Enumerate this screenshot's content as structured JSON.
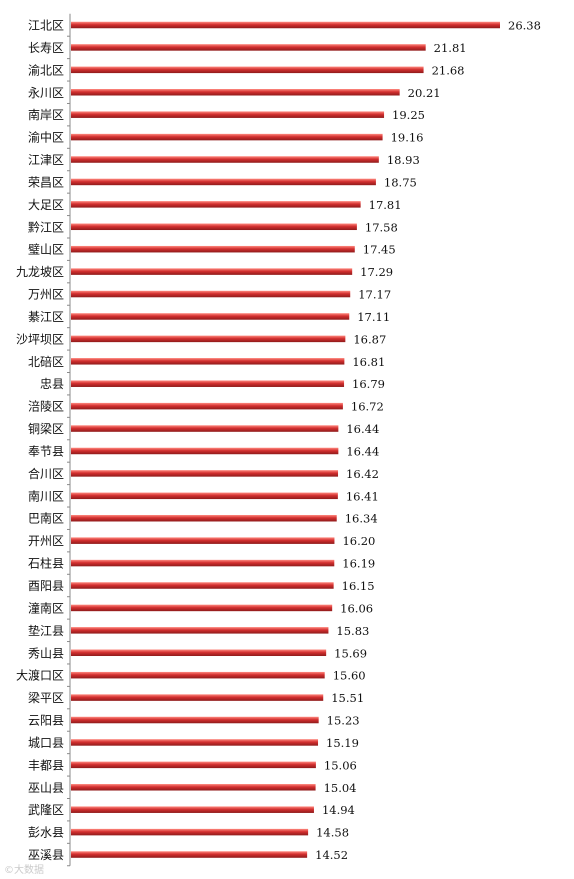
{
  "chart_data": {
    "type": "bar",
    "orientation": "horizontal",
    "categories": [
      "江北区",
      "长寿区",
      "渝北区",
      "永川区",
      "南岸区",
      "渝中区",
      "江津区",
      "荣昌区",
      "大足区",
      "黔江区",
      "璧山区",
      "九龙坡区",
      "万州区",
      "綦江区",
      "沙坪坝区",
      "北碚区",
      "忠县",
      "涪陵区",
      "铜梁区",
      "奉节县",
      "合川区",
      "南川区",
      "巴南区",
      "开州区",
      "石柱县",
      "酉阳县",
      "潼南区",
      "垫江县",
      "秀山县",
      "大渡口区",
      "梁平区",
      "云阳县",
      "城口县",
      "丰都县",
      "巫山县",
      "武隆区",
      "彭水县",
      "巫溪县"
    ],
    "values": [
      26.38,
      21.81,
      21.68,
      20.21,
      19.25,
      19.16,
      18.93,
      18.75,
      17.81,
      17.58,
      17.45,
      17.29,
      17.17,
      17.11,
      16.87,
      16.81,
      16.79,
      16.72,
      16.44,
      16.44,
      16.42,
      16.41,
      16.34,
      16.2,
      16.19,
      16.15,
      16.06,
      15.83,
      15.69,
      15.6,
      15.51,
      15.23,
      15.19,
      15.06,
      15.04,
      14.94,
      14.58,
      14.52
    ],
    "value_labels": [
      "26.38",
      "21.81",
      "21.68",
      "20.21",
      "19.25",
      "19.16",
      "18.93",
      "18.75",
      "17.81",
      "17.58",
      "17.45",
      "17.29",
      "17.17",
      "17.11",
      "16.87",
      "16.81",
      "16.79",
      "16.72",
      "16.44",
      "16.44",
      "16.42",
      "16.41",
      "16.34",
      "16.20",
      "16.19",
      "16.15",
      "16.06",
      "15.83",
      "15.69",
      "15.60",
      "15.51",
      "15.23",
      "15.19",
      "15.06",
      "15.04",
      "14.94",
      "14.58",
      "14.52"
    ],
    "title": "",
    "xlabel": "",
    "ylabel": "",
    "xlim": [
      0,
      26.38
    ],
    "grid": false,
    "legend": "none",
    "data_labels": "end",
    "colors": {
      "bar_main": "#d32f2f",
      "bar_highlight": "#ff8a80",
      "bar_shadow": "#8e1b1b",
      "axis": "#8a8a8a"
    }
  },
  "watermark": {
    "text": "©大数据"
  }
}
